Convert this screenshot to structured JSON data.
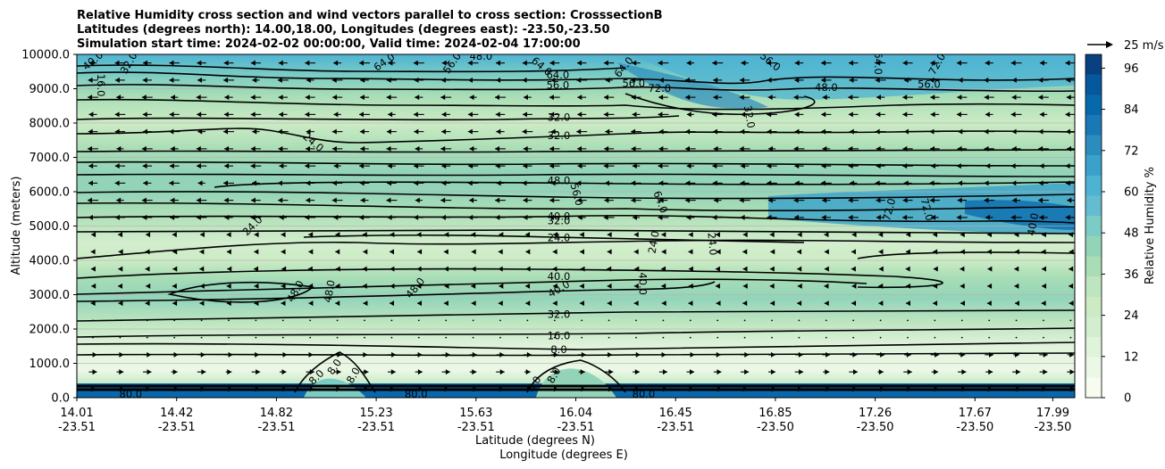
{
  "chart_data": {
    "type": "contour",
    "title_lines": [
      "Relative Humidity cross section and wind vectors parallel to cross section: CrosssectionB",
      "Latitudes (degrees north): 14.00,18.00, Longitudes (degrees east): -23.50,-23.50",
      "Simulation start time: 2024-02-02 00:00:00, Valid time: 2024-02-04 17:00:00"
    ],
    "ylabel": "Altitude (meters)",
    "xlabel_lat": "Latitude (degrees N)",
    "xlabel_lon": "Longitude (degrees E)",
    "ylim": [
      0,
      10000
    ],
    "y_ticks": [
      0,
      1000,
      2000,
      3000,
      4000,
      5000,
      6000,
      7000,
      8000,
      9000,
      10000
    ],
    "y_tick_labels": [
      "0.0",
      "1000.0",
      "2000.0",
      "3000.0",
      "4000.0",
      "5000.0",
      "6000.0",
      "7000.0",
      "8000.0",
      "9000.0",
      "10000.0"
    ],
    "x_ticks": [
      {
        "lat": "14.01",
        "lon": "-23.51",
        "frac": 0.0
      },
      {
        "lat": "14.42",
        "lon": "-23.51",
        "frac": 0.1
      },
      {
        "lat": "14.82",
        "lon": "-23.51",
        "frac": 0.2
      },
      {
        "lat": "15.23",
        "lon": "-23.51",
        "frac": 0.3
      },
      {
        "lat": "15.63",
        "lon": "-23.51",
        "frac": 0.4
      },
      {
        "lat": "16.04",
        "lon": "-23.51",
        "frac": 0.5
      },
      {
        "lat": "16.45",
        "lon": "-23.51",
        "frac": 0.6
      },
      {
        "lat": "16.85",
        "lon": "-23.50",
        "frac": 0.7
      },
      {
        "lat": "17.26",
        "lon": "-23.50",
        "frac": 0.8
      },
      {
        "lat": "17.67",
        "lon": "-23.50",
        "frac": 0.9
      },
      {
        "lat": "17.99",
        "lon": "-23.50",
        "frac": 0.978
      }
    ],
    "colorbar": {
      "label": "Relative Humidity %",
      "range": [
        0,
        100
      ],
      "ticks": [
        0,
        12,
        24,
        36,
        48,
        60,
        72,
        84,
        96
      ],
      "colors": [
        "#f7fcf0",
        "#ecf8e6",
        "#e0f3db",
        "#d3eece",
        "#ccebc5",
        "#bde5bf",
        "#a8ddb5",
        "#93d4b9",
        "#7bccc4",
        "#64bcd0",
        "#4eb3d3",
        "#3aa1cb",
        "#2b8cbe",
        "#1a79b4",
        "#0868ac",
        "#06589d",
        "#084081"
      ]
    },
    "vector_key": {
      "label": "25 m/s",
      "speed": 25
    },
    "rh_profile": [
      {
        "alt": 0,
        "rh": 94
      },
      {
        "alt": 150,
        "rh": 80
      },
      {
        "alt": 300,
        "rh": 30
      },
      {
        "alt": 800,
        "rh": 6
      },
      {
        "alt": 1500,
        "rh": 14
      },
      {
        "alt": 2200,
        "rh": 30
      },
      {
        "alt": 2900,
        "rh": 44
      },
      {
        "alt": 3500,
        "rh": 40
      },
      {
        "alt": 4000,
        "rh": 28
      },
      {
        "alt": 4500,
        "rh": 20
      },
      {
        "alt": 5000,
        "rh": 30
      },
      {
        "alt": 5500,
        "rh": 40
      },
      {
        "alt": 6000,
        "rh": 46
      },
      {
        "alt": 6600,
        "rh": 44
      },
      {
        "alt": 7200,
        "rh": 36
      },
      {
        "alt": 8000,
        "rh": 28
      },
      {
        "alt": 8800,
        "rh": 36
      },
      {
        "alt": 9400,
        "rh": 52
      },
      {
        "alt": 10000,
        "rh": 62
      }
    ],
    "contour_labels": [
      {
        "text": "40.0",
        "frac": 0.016,
        "alt": 9820,
        "rot": -40
      },
      {
        "text": "32.0",
        "frac": 0.052,
        "alt": 9750,
        "rot": -60
      },
      {
        "text": "16.0",
        "frac": 0.024,
        "alt": 9100,
        "rot": 90
      },
      {
        "text": "64.0",
        "frac": 0.308,
        "alt": 9780,
        "rot": -35
      },
      {
        "text": "48.0",
        "frac": 0.405,
        "alt": 9950,
        "rot": 0
      },
      {
        "text": "56.0",
        "frac": 0.376,
        "alt": 9750,
        "rot": -55
      },
      {
        "text": "64.0",
        "frac": 0.466,
        "alt": 9650,
        "rot": 40
      },
      {
        "text": "64.0",
        "frac": 0.482,
        "alt": 9400,
        "rot": 0
      },
      {
        "text": "56.0",
        "frac": 0.482,
        "alt": 9100,
        "rot": 0
      },
      {
        "text": "56.0",
        "frac": 0.558,
        "alt": 9150,
        "rot": 0
      },
      {
        "text": "64.0",
        "frac": 0.548,
        "alt": 9630,
        "rot": -50
      },
      {
        "text": "72.0",
        "frac": 0.584,
        "alt": 9010,
        "rot": 0
      },
      {
        "text": "56.0",
        "frac": 0.695,
        "alt": 9790,
        "rot": 40
      },
      {
        "text": "48.0",
        "frac": 0.751,
        "alt": 9040,
        "rot": 0
      },
      {
        "text": "56.0",
        "frac": 0.854,
        "alt": 9130,
        "rot": 0
      },
      {
        "text": "64.0",
        "frac": 0.803,
        "alt": 9740,
        "rot": 90
      },
      {
        "text": "72.0",
        "frac": 0.862,
        "alt": 9720,
        "rot": -60
      },
      {
        "text": "32.0",
        "frac": 0.674,
        "alt": 8180,
        "rot": 80
      },
      {
        "text": "32.0",
        "frac": 0.483,
        "alt": 8170,
        "rot": 0
      },
      {
        "text": "32.0",
        "frac": 0.483,
        "alt": 7630,
        "rot": 0
      },
      {
        "text": "24.0",
        "frac": 0.237,
        "alt": 7440,
        "rot": 40
      },
      {
        "text": "48.0",
        "frac": 0.483,
        "alt": 6330,
        "rot": 0
      },
      {
        "text": "56.0",
        "frac": 0.501,
        "alt": 5920,
        "rot": 75
      },
      {
        "text": "64.0",
        "frac": 0.585,
        "alt": 5700,
        "rot": 70
      },
      {
        "text": "72.0",
        "frac": 0.814,
        "alt": 5480,
        "rot": -75
      },
      {
        "text": "72.0",
        "frac": 0.852,
        "alt": 5480,
        "rot": 75
      },
      {
        "text": "40.0",
        "frac": 0.958,
        "alt": 5050,
        "rot": -80
      },
      {
        "text": "40.0",
        "frac": 0.483,
        "alt": 5290,
        "rot": 0
      },
      {
        "text": "32.0",
        "frac": 0.483,
        "alt": 5150,
        "rot": 0
      },
      {
        "text": "24.0",
        "frac": 0.176,
        "alt": 5010,
        "rot": -45
      },
      {
        "text": "24.0",
        "frac": 0.483,
        "alt": 4660,
        "rot": 0
      },
      {
        "text": "24.0",
        "frac": 0.578,
        "alt": 4530,
        "rot": -80
      },
      {
        "text": "24.0",
        "frac": 0.637,
        "alt": 4480,
        "rot": 85
      },
      {
        "text": "40.0",
        "frac": 0.483,
        "alt": 3530,
        "rot": 0
      },
      {
        "text": "40.0",
        "frac": 0.483,
        "alt": 3170,
        "rot": -30
      },
      {
        "text": "40.0",
        "frac": 0.567,
        "alt": 3320,
        "rot": 90
      },
      {
        "text": "48.0",
        "frac": 0.219,
        "alt": 3100,
        "rot": -60
      },
      {
        "text": "48.0",
        "frac": 0.253,
        "alt": 3100,
        "rot": -80
      },
      {
        "text": "48.0",
        "frac": 0.339,
        "alt": 3200,
        "rot": -50
      },
      {
        "text": "32.0",
        "frac": 0.483,
        "alt": 2430,
        "rot": 0
      },
      {
        "text": "16.0",
        "frac": 0.483,
        "alt": 1800,
        "rot": 0
      },
      {
        "text": "8.0",
        "frac": 0.483,
        "alt": 1400,
        "rot": 0
      },
      {
        "text": "8.0",
        "frac": 0.258,
        "alt": 900,
        "rot": -55
      },
      {
        "text": "8.0",
        "frac": 0.24,
        "alt": 600,
        "rot": -45
      },
      {
        "text": "8.0",
        "frac": 0.277,
        "alt": 650,
        "rot": -60
      },
      {
        "text": "80.0",
        "frac": 0.054,
        "alt": 100,
        "rot": 0
      },
      {
        "text": "80.0",
        "frac": 0.34,
        "alt": 100,
        "rot": 0
      },
      {
        "text": "80.0",
        "frac": 0.568,
        "alt": 100,
        "rot": 0
      },
      {
        "text": "8.0",
        "frac": 0.458,
        "alt": 400,
        "rot": -55
      },
      {
        "text": "8.0",
        "frac": 0.478,
        "alt": 650,
        "rot": -60
      }
    ]
  }
}
